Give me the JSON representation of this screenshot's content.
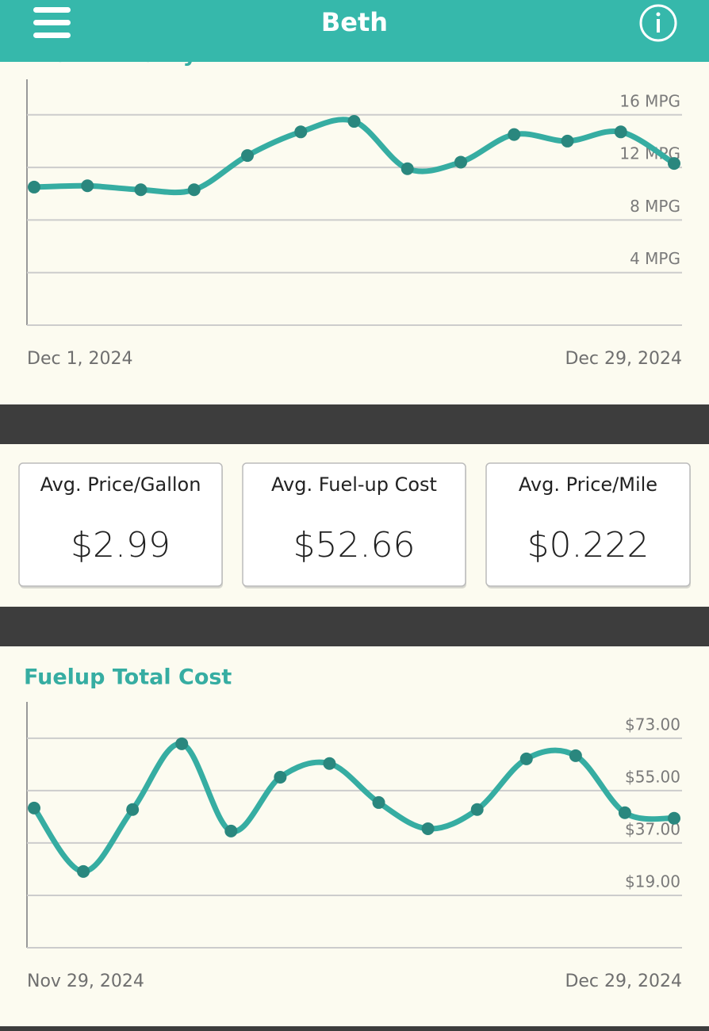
{
  "header": {
    "title": "Beth"
  },
  "chart_data": [
    {
      "type": "line",
      "title": "Fuel Efficiency",
      "color": "#36ada2",
      "marker_color": "#2a877e",
      "grid": true,
      "categories": [
        "Dec 1, 2024",
        null,
        null,
        null,
        null,
        null,
        null,
        null,
        null,
        null,
        null,
        null,
        "Dec 29, 2024"
      ],
      "values": [
        10.5,
        10.6,
        10.3,
        10.3,
        12.9,
        14.7,
        15.5,
        11.9,
        12.4,
        14.5,
        14.0,
        14.7,
        12.3
      ],
      "ylim": [
        0,
        18.7
      ],
      "yticks": [
        {
          "value": 4,
          "label": "4 MPG"
        },
        {
          "value": 8,
          "label": "8 MPG"
        },
        {
          "value": 12,
          "label": "12 MPG"
        },
        {
          "value": 16,
          "label": "16 MPG"
        }
      ]
    },
    {
      "type": "line",
      "title": "Fuelup Total Cost",
      "color": "#36ada2",
      "marker_color": "#2a877e",
      "grid": true,
      "categories": [
        "Nov 29, 2024",
        null,
        null,
        null,
        null,
        null,
        null,
        null,
        null,
        null,
        null,
        null,
        null,
        "Dec 29, 2024"
      ],
      "values": [
        49,
        27.2,
        48.5,
        71.1,
        41.1,
        59.6,
        64.3,
        50.9,
        41.9,
        48.5,
        65.9,
        67.0,
        47.4,
        45.5
      ],
      "ylim": [
        1,
        85.5
      ],
      "yticks": [
        {
          "value": 19,
          "label": "$19.00"
        },
        {
          "value": 37,
          "label": "$37.00"
        },
        {
          "value": 55,
          "label": "$55.00"
        },
        {
          "value": 73,
          "label": "$73.00"
        }
      ]
    }
  ],
  "stats": [
    {
      "label": "Avg. Price/Gallon",
      "value": "$2.99"
    },
    {
      "label": "Avg. Fuel-up Cost",
      "value": "$52.66"
    },
    {
      "label": "Avg. Price/Mile",
      "value": "$0.222"
    }
  ]
}
